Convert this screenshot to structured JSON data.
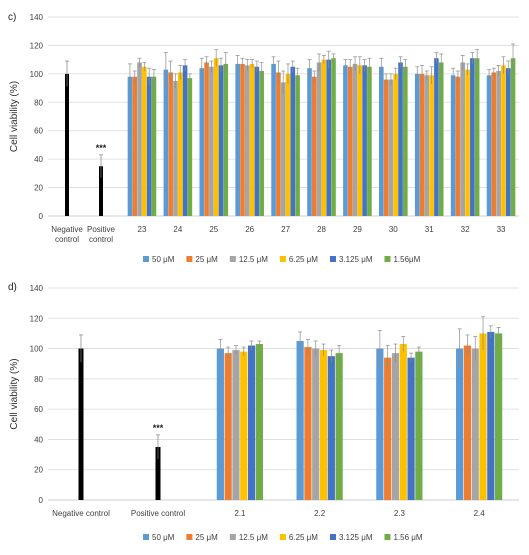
{
  "chart_data": [
    {
      "type": "bar",
      "panel": "c)",
      "title": "",
      "ylabel": "Cell viability (%)",
      "xlabel": "",
      "ylim": [
        0,
        140
      ],
      "yticks": [
        0,
        20,
        40,
        60,
        80,
        100,
        120,
        140
      ],
      "grid": true,
      "legend_position": "bottom",
      "controls": [
        {
          "label_lines": [
            "Negative",
            "control"
          ],
          "value": 100,
          "error": 9,
          "color": "#000000",
          "annotation": ""
        },
        {
          "label_lines": [
            "Positive",
            "control"
          ],
          "value": 35,
          "error": 8,
          "color": "#000000",
          "annotation": "***"
        }
      ],
      "categories": [
        "23",
        "24",
        "25",
        "26",
        "27",
        "28",
        "29",
        "30",
        "31",
        "32",
        "33"
      ],
      "series": [
        {
          "name": "50 μM",
          "color": "#5B9BD5",
          "values": [
            98,
            103,
            104,
            107,
            107,
            104,
            106,
            105,
            100,
            99,
            99
          ],
          "errors": [
            9,
            12,
            7,
            6,
            5,
            6,
            4,
            6,
            5,
            5,
            4
          ]
        },
        {
          "name": "25 μM",
          "color": "#ED7D31",
          "values": [
            98,
            101,
            108,
            107,
            101,
            98,
            105,
            96,
            100,
            98,
            101
          ],
          "errors": [
            4,
            8,
            4,
            4,
            8,
            4,
            5,
            4,
            6,
            4,
            3
          ]
        },
        {
          "name": "12.5 μM",
          "color": "#A5A5A5",
          "values": [
            108,
            95,
            105,
            106,
            94,
            108,
            107,
            96,
            99,
            108,
            102
          ],
          "errors": [
            3,
            5,
            4,
            4,
            8,
            6,
            5,
            4,
            3,
            5,
            4
          ]
        },
        {
          "name": "6.25 μM",
          "color": "#FFC000",
          "values": [
            105,
            101,
            111,
            107,
            100,
            110,
            106,
            100,
            99,
            103,
            106
          ],
          "errors": [
            3,
            5,
            6,
            3,
            7,
            3,
            6,
            4,
            6,
            4,
            6
          ]
        },
        {
          "name": "3.125 μM",
          "color": "#4472C4",
          "values": [
            98,
            106,
            106,
            105,
            105,
            110,
            106,
            108,
            111,
            111,
            104
          ],
          "errors": [
            6,
            4,
            5,
            4,
            4,
            6,
            4,
            4,
            4,
            4,
            5
          ]
        },
        {
          "name": "1.56μM",
          "color": "#70AD47",
          "values": [
            98,
            97,
            107,
            102,
            99,
            111,
            105,
            105,
            108,
            111,
            111
          ],
          "errors": [
            5,
            3,
            8,
            6,
            5,
            3,
            6,
            5,
            6,
            6,
            10
          ]
        }
      ]
    },
    {
      "type": "bar",
      "panel": "d)",
      "title": "",
      "ylabel": "Cell viability (%)",
      "xlabel": "",
      "ylim": [
        0,
        140
      ],
      "yticks": [
        0,
        20,
        40,
        60,
        80,
        100,
        120,
        140
      ],
      "grid": true,
      "legend_position": "bottom",
      "controls": [
        {
          "label_lines": [
            "Negative control"
          ],
          "value": 100,
          "error": 9,
          "color": "#000000",
          "annotation": ""
        },
        {
          "label_lines": [
            "Positive control"
          ],
          "value": 35,
          "error": 8,
          "color": "#000000",
          "annotation": "***"
        }
      ],
      "categories": [
        "2.1",
        "2.2",
        "2.3",
        "2.4"
      ],
      "series": [
        {
          "name": "50 μM",
          "color": "#5B9BD5",
          "values": [
            100,
            105,
            100,
            100
          ],
          "errors": [
            6,
            6,
            12,
            13
          ]
        },
        {
          "name": "25 μM",
          "color": "#ED7D31",
          "values": [
            97,
            101,
            94,
            102
          ],
          "errors": [
            4,
            5,
            8,
            7
          ]
        },
        {
          "name": "12.5 μM",
          "color": "#A5A5A5",
          "values": [
            99,
            100,
            97,
            100
          ],
          "errors": [
            3,
            5,
            6,
            8
          ]
        },
        {
          "name": "6.25 μM",
          "color": "#FFC000",
          "values": [
            98,
            99,
            103,
            110
          ],
          "errors": [
            3,
            4,
            5,
            11
          ]
        },
        {
          "name": "3.125 μM",
          "color": "#4472C4",
          "values": [
            102,
            95,
            94,
            111
          ],
          "errors": [
            3,
            4,
            3,
            4
          ]
        },
        {
          "name": "1.56 μM",
          "color": "#70AD47",
          "values": [
            103,
            97,
            98,
            110
          ],
          "errors": [
            2,
            5,
            3,
            4
          ]
        }
      ]
    }
  ]
}
